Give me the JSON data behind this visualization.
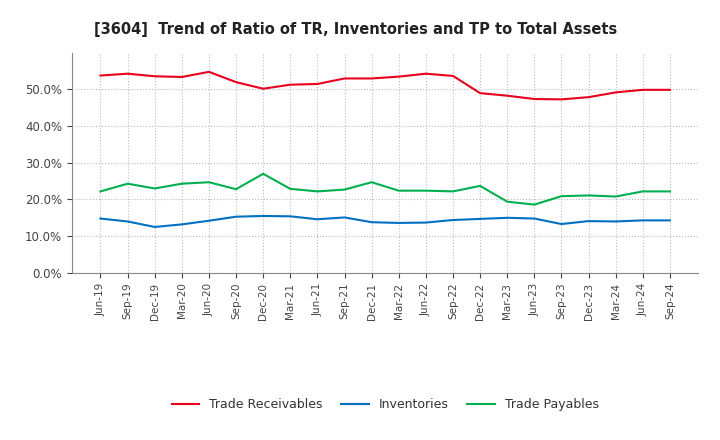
{
  "title": "[3604]  Trend of Ratio of TR, Inventories and TP to Total Assets",
  "x_labels": [
    "Jun-19",
    "Sep-19",
    "Dec-19",
    "Mar-20",
    "Jun-20",
    "Sep-20",
    "Dec-20",
    "Mar-21",
    "Jun-21",
    "Sep-21",
    "Dec-21",
    "Mar-22",
    "Jun-22",
    "Sep-22",
    "Dec-22",
    "Mar-23",
    "Jun-23",
    "Sep-23",
    "Dec-23",
    "Mar-24",
    "Jun-24",
    "Sep-24"
  ],
  "trade_receivables": [
    0.538,
    0.543,
    0.536,
    0.534,
    0.548,
    0.52,
    0.502,
    0.513,
    0.515,
    0.53,
    0.53,
    0.535,
    0.543,
    0.537,
    0.49,
    0.483,
    0.474,
    0.473,
    0.479,
    0.492,
    0.499,
    0.499
  ],
  "inventories": [
    0.148,
    0.14,
    0.125,
    0.132,
    0.142,
    0.153,
    0.155,
    0.154,
    0.146,
    0.151,
    0.138,
    0.136,
    0.137,
    0.144,
    0.147,
    0.15,
    0.148,
    0.133,
    0.141,
    0.14,
    0.143,
    0.143
  ],
  "trade_payables": [
    0.222,
    0.243,
    0.23,
    0.243,
    0.247,
    0.228,
    0.27,
    0.229,
    0.222,
    0.227,
    0.247,
    0.224,
    0.224,
    0.222,
    0.237,
    0.194,
    0.186,
    0.209,
    0.211,
    0.208,
    0.222,
    0.222
  ],
  "color_tr": "#e8001c",
  "color_inv": "#0070c0",
  "color_tp": "#00b050",
  "ylim": [
    0.0,
    0.6
  ],
  "yticks": [
    0.0,
    0.1,
    0.2,
    0.3,
    0.4,
    0.5
  ],
  "legend_labels": [
    "Trade Receivables",
    "Inventories",
    "Trade Payables"
  ],
  "background_color": "#ffffff",
  "plot_bg_color": "#ffffff",
  "grid_color": "#bbbbbb"
}
